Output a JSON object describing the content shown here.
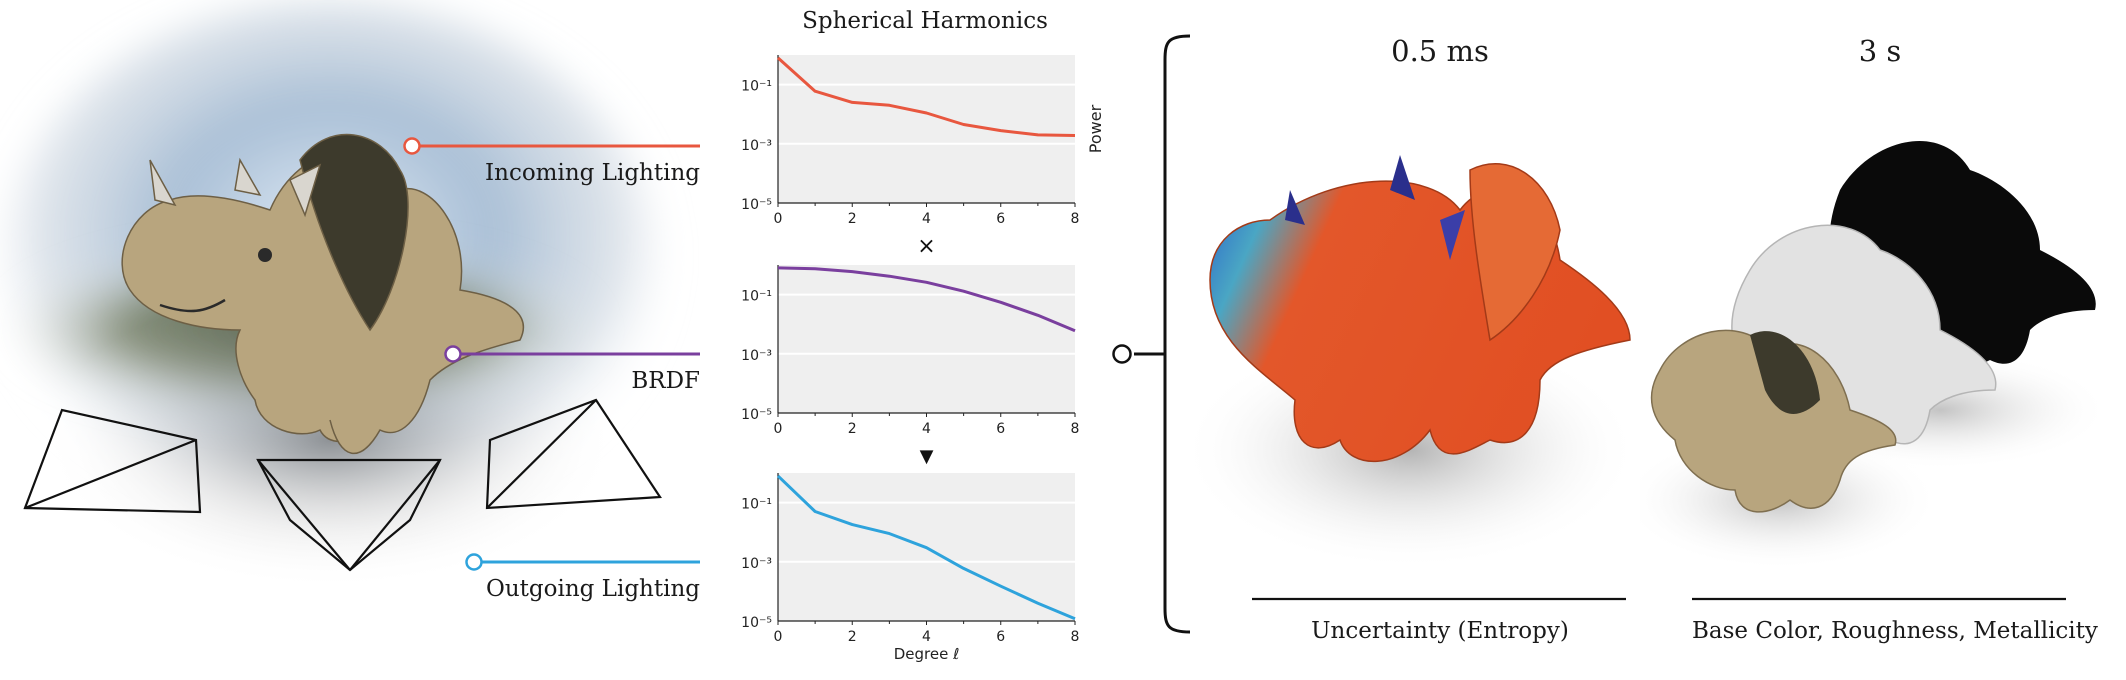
{
  "left_labels": {
    "incoming": "Incoming Lighting",
    "brdf": "BRDF",
    "outgoing": "Outgoing Lighting"
  },
  "colors": {
    "incoming": "#e8573f",
    "brdf": "#7a3f9e",
    "outgoing": "#2ea3dc",
    "plot_bg": "#efefef"
  },
  "charts_title": "Spherical Harmonics",
  "power_label": "Power",
  "degree_label": "Degree ℓ",
  "multiply_symbol": "×",
  "arrow_symbol": "▼",
  "right": {
    "time_fast": "0.5 ms",
    "time_slow": "3 s",
    "caption_fast": "Uncertainty (Entropy)",
    "caption_slow": "Base Color, Roughness, Metallicity"
  },
  "chart_data": [
    {
      "type": "line",
      "name": "incoming",
      "x": [
        0,
        1,
        2,
        3,
        4,
        5,
        6,
        7,
        8
      ],
      "y": [
        0.8,
        0.06,
        0.025,
        0.02,
        0.011,
        0.0045,
        0.0028,
        0.002,
        0.0019
      ],
      "yscale": "log",
      "xlim": [
        0,
        8
      ],
      "ylim": [
        1e-05,
        1
      ],
      "xticks": [
        "0",
        "2",
        "4",
        "6",
        "8"
      ],
      "yticks": [
        "10⁻¹",
        "10⁻³",
        "10⁻⁵"
      ],
      "ylabel": "Power",
      "grid": true
    },
    {
      "type": "line",
      "name": "brdf",
      "x": [
        0,
        1,
        2,
        3,
        4,
        5,
        6,
        7,
        8
      ],
      "y": [
        0.8,
        0.75,
        0.6,
        0.42,
        0.26,
        0.13,
        0.055,
        0.02,
        0.006
      ],
      "yscale": "log",
      "xlim": [
        0,
        8
      ],
      "ylim": [
        1e-05,
        1
      ],
      "xticks": [
        "0",
        "2",
        "4",
        "6",
        "8"
      ],
      "yticks": [
        "10⁻¹",
        "10⁻³",
        "10⁻⁵"
      ],
      "grid": true
    },
    {
      "type": "line",
      "name": "outgoing",
      "x": [
        0,
        1,
        2,
        3,
        4,
        5,
        6,
        7,
        8
      ],
      "y": [
        0.8,
        0.05,
        0.018,
        0.009,
        0.003,
        0.0006,
        0.00015,
        4e-05,
        1.2e-05
      ],
      "yscale": "log",
      "xlim": [
        0,
        8
      ],
      "ylim": [
        1e-05,
        1
      ],
      "xticks": [
        "0",
        "2",
        "4",
        "6",
        "8"
      ],
      "yticks": [
        "10⁻¹",
        "10⁻³",
        "10⁻⁵"
      ],
      "xlabel": "Degree ℓ",
      "grid": true
    }
  ]
}
